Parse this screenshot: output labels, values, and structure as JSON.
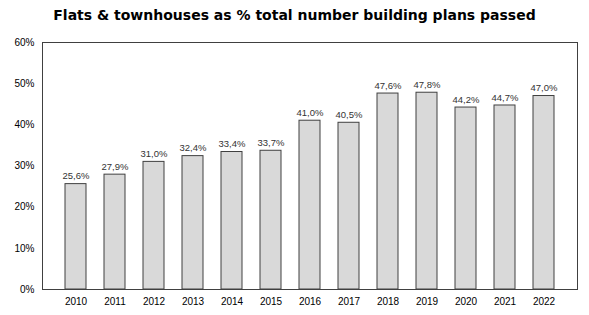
{
  "chart_data": {
    "type": "bar",
    "title": "Flats & townhouses as % total number building plans passed",
    "categories": [
      "2010",
      "2011",
      "2012",
      "2013",
      "2014",
      "2015",
      "2016",
      "2017",
      "2018",
      "2019",
      "2020",
      "2021",
      "2022"
    ],
    "values": [
      25.6,
      27.9,
      31.0,
      32.4,
      33.4,
      33.7,
      41.0,
      40.5,
      47.6,
      47.8,
      44.2,
      44.7,
      47.0
    ],
    "value_labels": [
      "25,6%",
      "27,9%",
      "31,0%",
      "32,4%",
      "33,4%",
      "33,7%",
      "41,0%",
      "40,5%",
      "47,6%",
      "47,8%",
      "44,2%",
      "44,7%",
      "47,0%"
    ],
    "color": "#d9d9d9",
    "ylim": [
      0,
      60
    ],
    "yticks": [
      {
        "value": 0,
        "label": "0%"
      },
      {
        "value": 10,
        "label": "10%"
      },
      {
        "value": 20,
        "label": "20%"
      },
      {
        "value": 30,
        "label": "30%"
      },
      {
        "value": 40,
        "label": "40%"
      },
      {
        "value": 50,
        "label": "50%"
      },
      {
        "value": 60,
        "label": "60%"
      }
    ],
    "grid": false,
    "data_labels": true
  }
}
